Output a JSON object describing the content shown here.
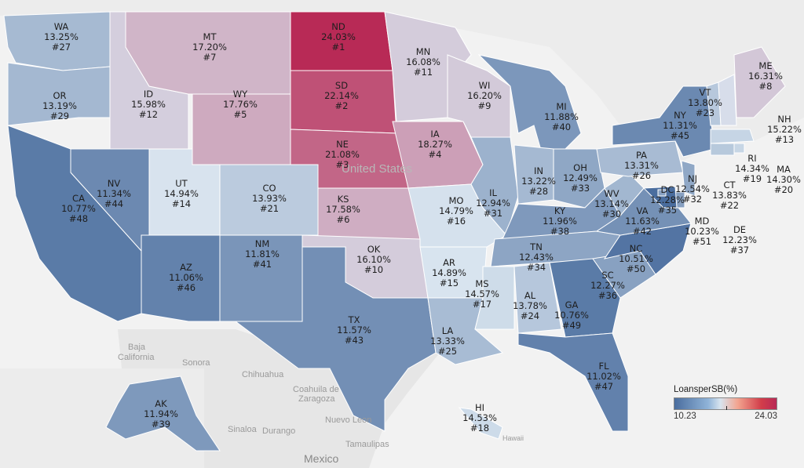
{
  "map": {
    "country_label": "United States",
    "geo_labels": {
      "baja": "Baja",
      "california": "California",
      "sonora": "Sonora",
      "chihuahua": "Chihuahua",
      "coahuila1": "Coahuila de",
      "coahuila2": "Zaragoza",
      "nuevo_leon": "Nuevo Leon",
      "sinaloa": "Sinaloa",
      "durango": "Durango",
      "tamaulipas": "Tamaulipas",
      "mexico": "Mexico",
      "hawaii_region": "Hawaii"
    },
    "states": [
      {
        "abbr": "WA",
        "value": "13.25%",
        "rank": "#27",
        "v": 13.25
      },
      {
        "abbr": "OR",
        "value": "13.19%",
        "rank": "#29",
        "v": 13.19
      },
      {
        "abbr": "CA",
        "value": "10.77%",
        "rank": "#48",
        "v": 10.77
      },
      {
        "abbr": "NV",
        "value": "11.34%",
        "rank": "#44",
        "v": 11.34
      },
      {
        "abbr": "ID",
        "value": "15.98%",
        "rank": "#12",
        "v": 15.98
      },
      {
        "abbr": "MT",
        "value": "17.20%",
        "rank": "#7",
        "v": 17.2
      },
      {
        "abbr": "WY",
        "value": "17.76%",
        "rank": "#5",
        "v": 17.76
      },
      {
        "abbr": "UT",
        "value": "14.94%",
        "rank": "#14",
        "v": 14.94
      },
      {
        "abbr": "AZ",
        "value": "11.06%",
        "rank": "#46",
        "v": 11.06
      },
      {
        "abbr": "CO",
        "value": "13.93%",
        "rank": "#21",
        "v": 13.93
      },
      {
        "abbr": "NM",
        "value": "11.81%",
        "rank": "#41",
        "v": 11.81
      },
      {
        "abbr": "ND",
        "value": "24.03%",
        "rank": "#1",
        "v": 24.03
      },
      {
        "abbr": "SD",
        "value": "22.14%",
        "rank": "#2",
        "v": 22.14
      },
      {
        "abbr": "NE",
        "value": "21.08%",
        "rank": "#3",
        "v": 21.08
      },
      {
        "abbr": "KS",
        "value": "17.58%",
        "rank": "#6",
        "v": 17.58
      },
      {
        "abbr": "OK",
        "value": "16.10%",
        "rank": "#10",
        "v": 16.1
      },
      {
        "abbr": "TX",
        "value": "11.57%",
        "rank": "#43",
        "v": 11.57
      },
      {
        "abbr": "MN",
        "value": "16.08%",
        "rank": "#11",
        "v": 16.08
      },
      {
        "abbr": "IA",
        "value": "18.27%",
        "rank": "#4",
        "v": 18.27
      },
      {
        "abbr": "MO",
        "value": "14.79%",
        "rank": "#16",
        "v": 14.79
      },
      {
        "abbr": "AR",
        "value": "14.89%",
        "rank": "#15",
        "v": 14.89
      },
      {
        "abbr": "LA",
        "value": "13.33%",
        "rank": "#25",
        "v": 13.33
      },
      {
        "abbr": "WI",
        "value": "16.20%",
        "rank": "#9",
        "v": 16.2
      },
      {
        "abbr": "IL",
        "value": "12.94%",
        "rank": "#31",
        "v": 12.94
      },
      {
        "abbr": "MI",
        "value": "11.88%",
        "rank": "#40",
        "v": 11.88
      },
      {
        "abbr": "IN",
        "value": "13.22%",
        "rank": "#28",
        "v": 13.22
      },
      {
        "abbr": "OH",
        "value": "12.49%",
        "rank": "#33",
        "v": 12.49
      },
      {
        "abbr": "KY",
        "value": "11.96%",
        "rank": "#38",
        "v": 11.96
      },
      {
        "abbr": "TN",
        "value": "12.43%",
        "rank": "#34",
        "v": 12.43
      },
      {
        "abbr": "MS",
        "value": "14.57%",
        "rank": "#17",
        "v": 14.57
      },
      {
        "abbr": "AL",
        "value": "13.78%",
        "rank": "#24",
        "v": 13.78
      },
      {
        "abbr": "GA",
        "value": "10.76%",
        "rank": "#49",
        "v": 10.76
      },
      {
        "abbr": "FL",
        "value": "11.02%",
        "rank": "#47",
        "v": 11.02
      },
      {
        "abbr": "SC",
        "value": "12.27%",
        "rank": "#36",
        "v": 12.27
      },
      {
        "abbr": "NC",
        "value": "10.51%",
        "rank": "#50",
        "v": 10.51
      },
      {
        "abbr": "VA",
        "value": "11.63%",
        "rank": "#42",
        "v": 11.63
      },
      {
        "abbr": "WV",
        "value": "13.14%",
        "rank": "#30",
        "v": 13.14
      },
      {
        "abbr": "PA",
        "value": "13.31%",
        "rank": "#26",
        "v": 13.31
      },
      {
        "abbr": "NY",
        "value": "11.31%",
        "rank": "#45",
        "v": 11.31
      },
      {
        "abbr": "VT",
        "value": "13.80%",
        "rank": "#23",
        "v": 13.8
      },
      {
        "abbr": "ME",
        "value": "16.31%",
        "rank": "#8",
        "v": 16.31
      },
      {
        "abbr": "NH",
        "value": "15.22%",
        "rank": "#13",
        "v": 15.22
      },
      {
        "abbr": "MA",
        "value": "14.30%",
        "rank": "#20",
        "v": 14.3
      },
      {
        "abbr": "RI",
        "value": "14.34%",
        "rank": "#19",
        "v": 14.34
      },
      {
        "abbr": "CT",
        "value": "13.83%",
        "rank": "#22",
        "v": 13.83
      },
      {
        "abbr": "NJ",
        "value": "12.54%",
        "rank": "#32",
        "v": 12.54
      },
      {
        "abbr": "DE",
        "value": "12.23%",
        "rank": "#37",
        "v": 12.23
      },
      {
        "abbr": "MD",
        "value": "10.23%",
        "rank": "#51",
        "v": 10.23
      },
      {
        "abbr": "DC",
        "value": "12.28%",
        "rank": "#35",
        "v": 12.28
      },
      {
        "abbr": "AK",
        "value": "11.94%",
        "rank": "#39",
        "v": 11.94
      },
      {
        "abbr": "HI",
        "value": "14.53%",
        "rank": "#18",
        "v": 14.53
      }
    ]
  },
  "legend": {
    "title": "LoansperSB(%)",
    "min": "10.23",
    "max": "24.03"
  },
  "colors": {
    "low": "#4a6d9e",
    "mid": "#d8e4ef",
    "high": "#b82a56",
    "background": "#f2f2f2",
    "land": "#e6e6e6"
  }
}
